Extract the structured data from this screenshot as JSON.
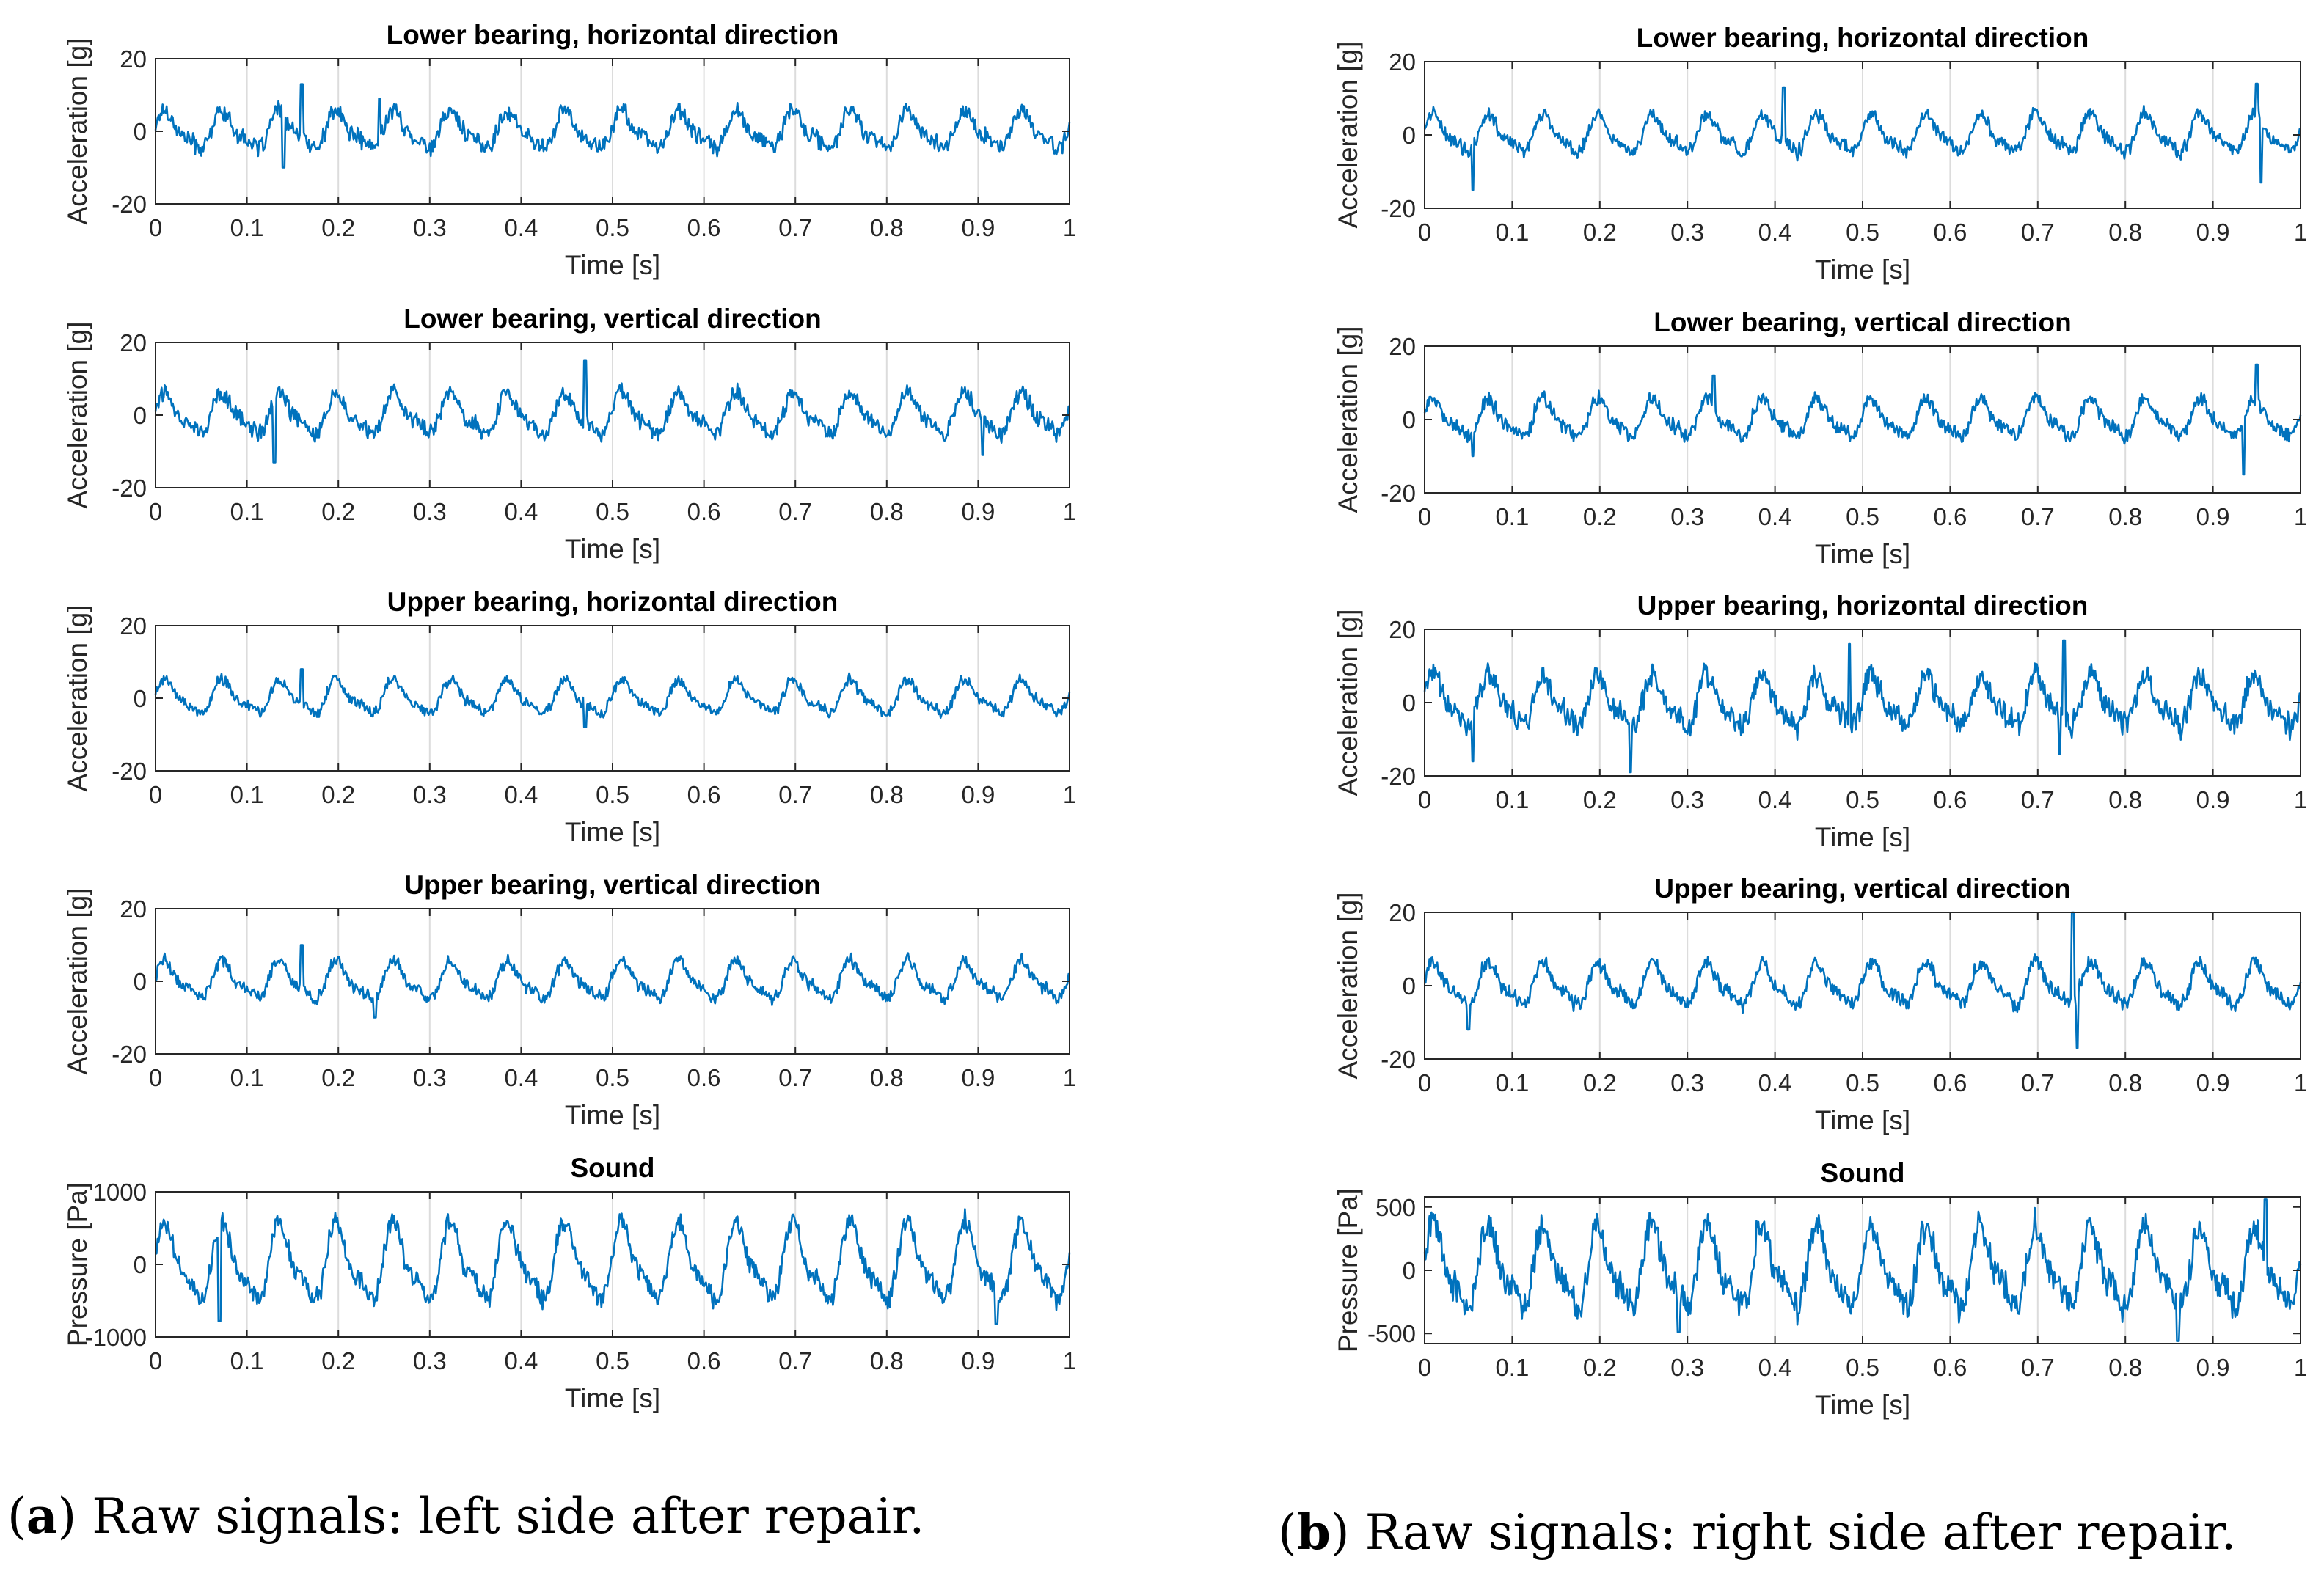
{
  "styles": {
    "line_color": "#0072bd",
    "axis_color": "#262626",
    "grid_color": "#dcdcdc",
    "background": "#ffffff"
  },
  "captions": {
    "a": {
      "label": "a",
      "text": " Raw signals: left side after repair."
    },
    "b": {
      "label": "b",
      "text": " Raw signals: right side after repair."
    }
  },
  "chart_data": [
    {
      "panel": "a",
      "row": 0,
      "type": "line",
      "title": "Lower bearing, horizontal direction",
      "xlabel": "Time [s]",
      "ylabel": "Acceleration [g]",
      "xlim": [
        0,
        1
      ],
      "ylim": [
        -20,
        20
      ],
      "xticks": [
        0,
        0.1,
        0.2,
        0.3,
        0.4,
        0.5,
        0.6,
        0.7,
        0.8,
        0.9,
        1
      ],
      "xtick_labels": [
        "0",
        "0.1",
        "0.2",
        "0.3",
        "0.4",
        "0.5",
        "0.6",
        "0.7",
        "0.8",
        "0.9",
        "1"
      ],
      "yticks": [
        -20,
        0,
        20
      ],
      "ytick_labels": [
        "-20",
        "0",
        "20"
      ],
      "signal": {
        "frequency_hz": 16,
        "amplitude": 4.5,
        "noise": 2.2,
        "spikes": [
          [
            0.16,
            13
          ],
          [
            0.245,
            9
          ],
          [
            0.14,
            -10
          ]
        ]
      }
    },
    {
      "panel": "a",
      "row": 1,
      "type": "line",
      "title": "Lower bearing, vertical direction",
      "xlabel": "Time [s]",
      "ylabel": "Acceleration [g]",
      "xlim": [
        0,
        1
      ],
      "ylim": [
        -20,
        20
      ],
      "xticks": [
        0,
        0.1,
        0.2,
        0.3,
        0.4,
        0.5,
        0.6,
        0.7,
        0.8,
        0.9,
        1
      ],
      "xtick_labels": [
        "0",
        "0.1",
        "0.2",
        "0.3",
        "0.4",
        "0.5",
        "0.6",
        "0.7",
        "0.8",
        "0.9",
        "1"
      ],
      "yticks": [
        -20,
        0,
        20
      ],
      "ytick_labels": [
        "-20",
        "0",
        "20"
      ],
      "signal": {
        "frequency_hz": 16,
        "amplitude": 5,
        "noise": 2.2,
        "spikes": [
          [
            0.47,
            15
          ],
          [
            0.13,
            -13
          ],
          [
            0.905,
            -11
          ]
        ]
      }
    },
    {
      "panel": "a",
      "row": 2,
      "type": "line",
      "title": "Upper bearing, horizontal direction",
      "xlabel": "Time [s]",
      "ylabel": "Acceleration [g]",
      "xlim": [
        0,
        1
      ],
      "ylim": [
        -20,
        20
      ],
      "xticks": [
        0,
        0.1,
        0.2,
        0.3,
        0.4,
        0.5,
        0.6,
        0.7,
        0.8,
        0.9,
        1
      ],
      "xtick_labels": [
        "0",
        "0.1",
        "0.2",
        "0.3",
        "0.4",
        "0.5",
        "0.6",
        "0.7",
        "0.8",
        "0.9",
        "1"
      ],
      "yticks": [
        -20,
        0,
        20
      ],
      "ytick_labels": [
        "-20",
        "0",
        "20"
      ],
      "signal": {
        "frequency_hz": 16,
        "amplitude": 4,
        "noise": 1.4,
        "spikes": [
          [
            0.16,
            8
          ],
          [
            0.47,
            -8
          ]
        ]
      }
    },
    {
      "panel": "a",
      "row": 3,
      "type": "line",
      "title": "Upper bearing, vertical direction",
      "xlabel": "Time [s]",
      "ylabel": "Acceleration [g]",
      "xlim": [
        0,
        1
      ],
      "ylim": [
        -20,
        20
      ],
      "xticks": [
        0,
        0.1,
        0.2,
        0.3,
        0.4,
        0.5,
        0.6,
        0.7,
        0.8,
        0.9,
        1
      ],
      "xtick_labels": [
        "0",
        "0.1",
        "0.2",
        "0.3",
        "0.4",
        "0.5",
        "0.6",
        "0.7",
        "0.8",
        "0.9",
        "1"
      ],
      "yticks": [
        -20,
        0,
        20
      ],
      "ytick_labels": [
        "-20",
        "0",
        "20"
      ],
      "signal": {
        "frequency_hz": 16,
        "amplitude": 4.5,
        "noise": 1.6,
        "spikes": [
          [
            0.16,
            10
          ],
          [
            0.24,
            -10
          ]
        ]
      }
    },
    {
      "panel": "a",
      "row": 4,
      "type": "line",
      "title": "Sound",
      "xlabel": "Time [s]",
      "ylabel": "Pressure [Pa]",
      "xlim": [
        0,
        1
      ],
      "ylim": [
        -1000,
        1000
      ],
      "xticks": [
        0,
        0.1,
        0.2,
        0.3,
        0.4,
        0.5,
        0.6,
        0.7,
        0.8,
        0.9,
        1
      ],
      "xtick_labels": [
        "0",
        "0.1",
        "0.2",
        "0.3",
        "0.4",
        "0.5",
        "0.6",
        "0.7",
        "0.8",
        "0.9",
        "1"
      ],
      "yticks": [
        -1000,
        0,
        1000
      ],
      "ytick_labels": [
        "-1000",
        "0",
        "1000"
      ],
      "signal": {
        "frequency_hz": 16,
        "amplitude": 470,
        "noise": 130,
        "spikes": [
          [
            0.07,
            -780
          ],
          [
            0.92,
            -820
          ]
        ]
      }
    },
    {
      "panel": "b",
      "row": 0,
      "type": "line",
      "title": "Lower bearing, horizontal direction",
      "xlabel": "Time [s]",
      "ylabel": "Acceleration [g]",
      "xlim": [
        0,
        1
      ],
      "ylim": [
        -20,
        20
      ],
      "xticks": [
        0,
        0.1,
        0.2,
        0.3,
        0.4,
        0.5,
        0.6,
        0.7,
        0.8,
        0.9,
        1
      ],
      "xtick_labels": [
        "0",
        "0.1",
        "0.2",
        "0.3",
        "0.4",
        "0.5",
        "0.6",
        "0.7",
        "0.8",
        "0.9",
        "1"
      ],
      "yticks": [
        -20,
        0,
        20
      ],
      "ytick_labels": [
        "-20",
        "0",
        "20"
      ],
      "signal": {
        "frequency_hz": 16,
        "amplitude": 4.5,
        "noise": 1.8,
        "spikes": [
          [
            0.055,
            -15
          ],
          [
            0.41,
            13
          ],
          [
            0.95,
            14
          ],
          [
            0.955,
            -13
          ]
        ]
      }
    },
    {
      "panel": "b",
      "row": 1,
      "type": "line",
      "title": "Lower bearing, vertical direction",
      "xlabel": "Time [s]",
      "ylabel": "Acceleration [g]",
      "xlim": [
        0,
        1
      ],
      "ylim": [
        -20,
        20
      ],
      "xticks": [
        0,
        0.1,
        0.2,
        0.3,
        0.4,
        0.5,
        0.6,
        0.7,
        0.8,
        0.9,
        1
      ],
      "xtick_labels": [
        "0",
        "0.1",
        "0.2",
        "0.3",
        "0.4",
        "0.5",
        "0.6",
        "0.7",
        "0.8",
        "0.9",
        "1"
      ],
      "yticks": [
        -20,
        0,
        20
      ],
      "ytick_labels": [
        "-20",
        "0",
        "20"
      ],
      "signal": {
        "frequency_hz": 16,
        "amplitude": 4.5,
        "noise": 1.8,
        "spikes": [
          [
            0.055,
            -10
          ],
          [
            0.33,
            12
          ],
          [
            0.95,
            15
          ],
          [
            0.935,
            -15
          ]
        ]
      }
    },
    {
      "panel": "b",
      "row": 2,
      "type": "line",
      "title": "Upper bearing, horizontal direction",
      "xlabel": "Time [s]",
      "ylabel": "Acceleration [g]",
      "xlim": [
        0,
        1
      ],
      "ylim": [
        -20,
        20
      ],
      "xticks": [
        0,
        0.1,
        0.2,
        0.3,
        0.4,
        0.5,
        0.6,
        0.7,
        0.8,
        0.9,
        1
      ],
      "xtick_labels": [
        "0",
        "0.1",
        "0.2",
        "0.3",
        "0.4",
        "0.5",
        "0.6",
        "0.7",
        "0.8",
        "0.9",
        "1"
      ],
      "yticks": [
        -20,
        0,
        20
      ],
      "ytick_labels": [
        "-20",
        "0",
        "20"
      ],
      "signal": {
        "frequency_hz": 16,
        "amplitude": 6,
        "noise": 3,
        "spikes": [
          [
            0.055,
            -16
          ],
          [
            0.235,
            -19
          ],
          [
            0.485,
            16
          ],
          [
            0.73,
            17
          ],
          [
            0.725,
            -14
          ]
        ]
      }
    },
    {
      "panel": "b",
      "row": 3,
      "type": "line",
      "title": "Upper bearing, vertical direction",
      "xlabel": "Time [s]",
      "ylabel": "Acceleration [g]",
      "xlim": [
        0,
        1
      ],
      "ylim": [
        -20,
        20
      ],
      "xticks": [
        0,
        0.1,
        0.2,
        0.3,
        0.4,
        0.5,
        0.6,
        0.7,
        0.8,
        0.9,
        1
      ],
      "xtick_labels": [
        "0",
        "0.1",
        "0.2",
        "0.3",
        "0.4",
        "0.5",
        "0.6",
        "0.7",
        "0.8",
        "0.9",
        "1"
      ],
      "yticks": [
        -20,
        0,
        20
      ],
      "ytick_labels": [
        "-20",
        "0",
        "20"
      ],
      "signal": {
        "frequency_hz": 16,
        "amplitude": 5,
        "noise": 1.9,
        "spikes": [
          [
            0.74,
            20
          ],
          [
            0.745,
            -17
          ],
          [
            0.05,
            -12
          ]
        ]
      }
    },
    {
      "panel": "b",
      "row": 4,
      "type": "line",
      "title": "Sound",
      "xlabel": "Time [s]",
      "ylabel": "Pressure [Pa]",
      "xlim": [
        0,
        1
      ],
      "ylim": [
        -580,
        580
      ],
      "xticks": [
        0,
        0.1,
        0.2,
        0.3,
        0.4,
        0.5,
        0.6,
        0.7,
        0.8,
        0.9,
        1
      ],
      "xtick_labels": [
        "0",
        "0.1",
        "0.2",
        "0.3",
        "0.4",
        "0.5",
        "0.6",
        "0.7",
        "0.8",
        "0.9",
        "1"
      ],
      "yticks": [
        -500,
        0,
        500
      ],
      "ytick_labels": [
        "-500",
        "0",
        "500"
      ],
      "signal": {
        "frequency_hz": 16,
        "amplitude": 280,
        "noise": 110,
        "spikes": [
          [
            0.96,
            560
          ],
          [
            0.86,
            -560
          ],
          [
            0.29,
            -490
          ]
        ]
      }
    }
  ]
}
